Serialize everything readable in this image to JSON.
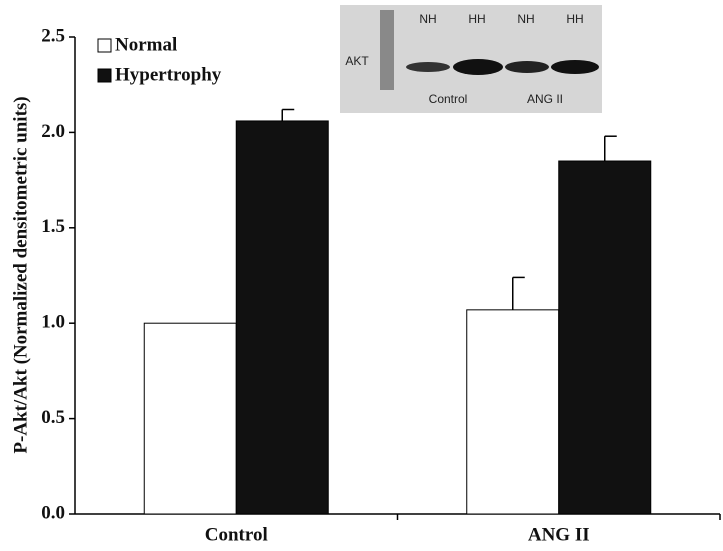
{
  "chart_data": {
    "type": "bar",
    "y_label": "P-Akt/Akt (Normalized densitometric units)",
    "categories": [
      "Control",
      "ANG II"
    ],
    "series": [
      {
        "name": "Normal",
        "color": "#ffffff",
        "values": [
          1.0,
          1.07
        ],
        "errors": [
          null,
          0.17
        ]
      },
      {
        "name": "Hypertrophy",
        "color": "#111111",
        "values": [
          2.06,
          1.85
        ],
        "errors": [
          0.06,
          0.13
        ]
      }
    ],
    "ylim": [
      0,
      2.5
    ],
    "yticks": [
      {
        "value": 0,
        "label": "0.0"
      },
      0.5,
      {
        "value": 1,
        "label": "1.0"
      },
      1.5,
      {
        "value": 2,
        "label": "2.0"
      },
      2.5
    ],
    "grid": false,
    "legend": "top-left",
    "inset": {
      "row_label": "AKT",
      "lane_labels": [
        "NH",
        "HH",
        "NH",
        "HH"
      ],
      "group_labels": [
        "Control",
        "ANG II"
      ]
    }
  }
}
